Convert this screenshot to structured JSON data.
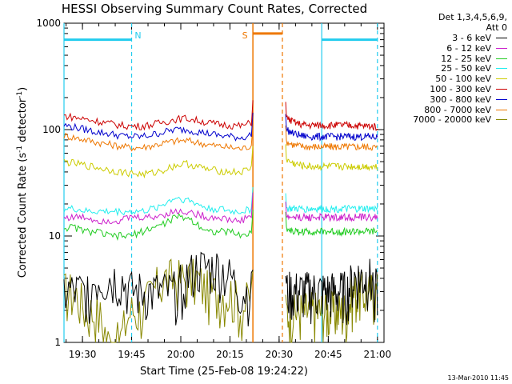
{
  "chart_data": {
    "type": "line",
    "title": "HESSI Observing Summary Count Rates, Corrected",
    "xlabel": "Start Time (25-Feb-08 19:24:22)",
    "ylabel_main": "Corrected Count Rate (s",
    "ylabel_sup1": "-1",
    "ylabel_mid": " detector",
    "ylabel_sup2": "-1",
    "ylabel_end": ")",
    "yscale": "log",
    "ylim": [
      1,
      1000
    ],
    "y_ticks": [
      {
        "value": 1,
        "label": "1"
      },
      {
        "value": 10,
        "label": "10"
      },
      {
        "value": 100,
        "label": "100"
      },
      {
        "value": 1000,
        "label": "1000"
      }
    ],
    "xlim": [
      "19:24:22",
      "21:02"
    ],
    "x_ticks": [
      "19:30",
      "19:45",
      "20:00",
      "20:15",
      "20:30",
      "20:45",
      "21:00"
    ],
    "grid": false,
    "legend_header": [
      "Det 1,3,4,5,6,9,",
      "Att 0"
    ],
    "legend_position": "right",
    "footer_date": "13-Mar-2010 11:45",
    "annotations": [
      {
        "text": "N",
        "color": "#22ccee",
        "time": "19:45"
      },
      {
        "text": "S",
        "color": "#ee7700",
        "time": "20:22"
      }
    ],
    "intervals": [
      {
        "kind": "night",
        "color": "#22ccee",
        "start": "19:24:22",
        "end": "19:45",
        "level": 700
      },
      {
        "kind": "night",
        "color": "#22ccee",
        "start": "20:43",
        "end": "21:00",
        "level": 700
      },
      {
        "kind": "saa",
        "color": "#ee7700",
        "start": "20:22",
        "end": "20:31",
        "level": 800
      }
    ],
    "gap": {
      "start": "20:22",
      "end": "20:32"
    },
    "series": [
      {
        "name": "3 - 6 keV",
        "color": "#000000",
        "pre": [
          3,
          3,
          3,
          4,
          4,
          4,
          3,
          3,
          3,
          3,
          3,
          4,
          5,
          5,
          5,
          4,
          3,
          3
        ],
        "post": [
          3,
          3,
          3,
          3,
          3,
          3,
          3,
          3,
          3,
          4,
          4,
          4,
          3
        ]
      },
      {
        "name": "6 - 12 keV",
        "color": "#cc22cc",
        "pre": [
          15,
          15,
          15,
          14,
          14,
          14,
          15,
          15,
          15,
          16,
          17,
          17,
          16,
          15,
          15,
          14,
          14,
          16
        ],
        "post": [
          15,
          15,
          15,
          15,
          15,
          15,
          15,
          15,
          15,
          15,
          15,
          15,
          15
        ]
      },
      {
        "name": "12 - 25 keV",
        "color": "#22cc22",
        "pre": [
          12,
          12,
          11,
          11,
          10,
          10,
          10,
          11,
          12,
          13,
          15,
          15,
          13,
          11,
          11,
          11,
          10,
          11
        ],
        "post": [
          12,
          11,
          11,
          11,
          11,
          11,
          11,
          11,
          11,
          11,
          11,
          11,
          11
        ]
      },
      {
        "name": "25 - 50 keV",
        "color": "#22eeee",
        "pre": [
          18,
          18,
          17,
          17,
          17,
          17,
          17,
          17,
          18,
          20,
          23,
          22,
          20,
          18,
          18,
          17,
          17,
          18
        ],
        "post": [
          18,
          18,
          18,
          18,
          18,
          18,
          18,
          18,
          18,
          18,
          18,
          18,
          18
        ]
      },
      {
        "name": "50 - 100 keV",
        "color": "#cccc00",
        "pre": [
          50,
          48,
          46,
          44,
          42,
          40,
          39,
          38,
          39,
          42,
          46,
          48,
          45,
          42,
          41,
          40,
          40,
          44
        ],
        "post": [
          52,
          48,
          46,
          45,
          45,
          45,
          45,
          45,
          45,
          45,
          45,
          45,
          45
        ]
      },
      {
        "name": "100 - 300 keV",
        "color": "#cc0000",
        "pre": [
          135,
          130,
          125,
          120,
          115,
          110,
          108,
          108,
          112,
          118,
          125,
          128,
          122,
          116,
          112,
          110,
          108,
          118
        ],
        "post": [
          130,
          118,
          112,
          110,
          110,
          110,
          110,
          110,
          110,
          110,
          108,
          108,
          106
        ]
      },
      {
        "name": "300 - 800 keV",
        "color": "#0000cc",
        "pre": [
          110,
          105,
          100,
          95,
          92,
          88,
          86,
          86,
          90,
          95,
          100,
          100,
          96,
          92,
          88,
          86,
          84,
          90
        ],
        "post": [
          100,
          92,
          88,
          86,
          86,
          86,
          86,
          86,
          86,
          86,
          86,
          86,
          85
        ]
      },
      {
        "name": "800 - 7000 keV",
        "color": "#ee7700",
        "pre": [
          88,
          84,
          80,
          76,
          73,
          70,
          68,
          68,
          71,
          75,
          78,
          79,
          76,
          72,
          70,
          68,
          66,
          72
        ],
        "post": [
          78,
          72,
          70,
          69,
          69,
          69,
          69,
          69,
          69,
          69,
          69,
          69,
          68
        ]
      },
      {
        "name": "7000 - 20000 keV",
        "color": "#888800",
        "pre": [
          3,
          3,
          2,
          2,
          1,
          1,
          2,
          2,
          3,
          4,
          4,
          4,
          4,
          3,
          3,
          3,
          2,
          3
        ],
        "post": [
          2,
          2,
          2,
          2,
          2,
          2,
          2,
          2,
          2,
          3,
          3,
          3,
          3
        ]
      }
    ],
    "pre_window": [
      "19:24:22",
      "20:22"
    ],
    "post_window": [
      "20:32",
      "21:00"
    ]
  }
}
